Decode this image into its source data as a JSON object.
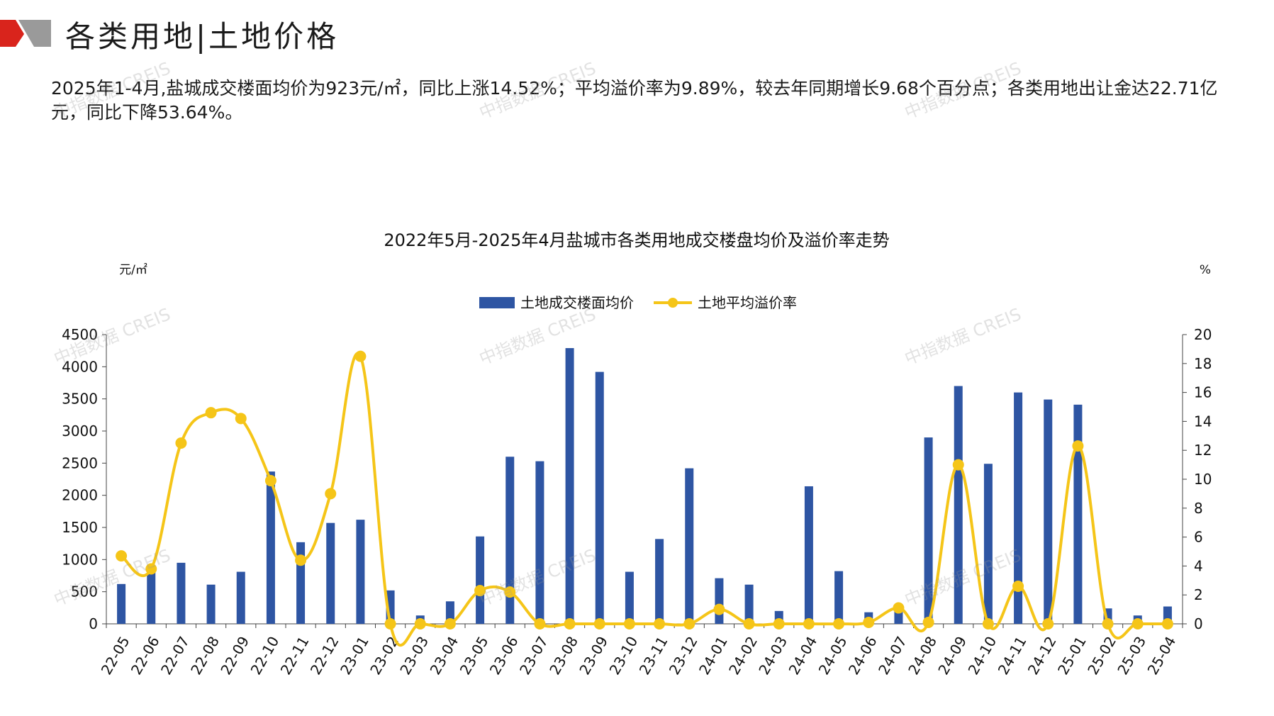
{
  "page": {
    "title": "各类用地|土地价格",
    "summary": "2025年1-4月,盐城成交楼面均价为923元/㎡，同比上涨14.52%；平均溢价率为9.89%，较去年同期增长9.68个百分点；各类用地出让金达22.71亿元，同比下降53.64%。",
    "watermark": "中指数据 CREIS"
  },
  "colors": {
    "bar": "#2E55A3",
    "line": "#F5C518",
    "logo_red": "#D9241C",
    "logo_gray": "#9A9A9A"
  },
  "chart_data": {
    "type": "bar",
    "title": "2022年5月-2025年4月盐城市各类用地成交楼盘均价及溢价率走势",
    "left_unit": "元/㎡",
    "right_unit": "%",
    "legend_position": "top-center",
    "categories": [
      "22-05",
      "22-06",
      "22-07",
      "22-08",
      "22-09",
      "22-10",
      "22-11",
      "22-12",
      "23-01",
      "23-02",
      "23-03",
      "23-04",
      "23-05",
      "23-06",
      "23-07",
      "23-08",
      "23-09",
      "23-10",
      "23-11",
      "23-12",
      "24-01",
      "24-02",
      "24-03",
      "24-04",
      "24-05",
      "24-06",
      "24-07",
      "24-08",
      "24-09",
      "24-10",
      "24-11",
      "24-12",
      "25-01",
      "25-02",
      "25-03",
      "25-04"
    ],
    "left_axis": {
      "min": 0,
      "max": 4500,
      "ticks": [
        0,
        500,
        1000,
        1500,
        2000,
        2500,
        3000,
        3500,
        4000,
        4500
      ]
    },
    "right_axis": {
      "min": 0,
      "max": 20,
      "ticks": [
        0,
        2,
        4,
        6,
        8,
        10,
        12,
        14,
        16,
        18,
        20
      ]
    },
    "series": [
      {
        "name": "土地成交楼面均价",
        "type": "bar",
        "axis": "left",
        "values": [
          620,
          900,
          950,
          610,
          810,
          2370,
          1270,
          1570,
          1620,
          520,
          130,
          350,
          1360,
          2600,
          2530,
          4290,
          3920,
          810,
          1320,
          2420,
          710,
          610,
          200,
          2140,
          820,
          180,
          260,
          2900,
          3700,
          2490,
          3600,
          3490,
          3410,
          240,
          130,
          270
        ]
      },
      {
        "name": "土地平均溢价率",
        "type": "line",
        "axis": "right",
        "values": [
          4.7,
          3.8,
          12.5,
          14.6,
          14.2,
          9.9,
          4.4,
          9.0,
          18.5,
          0,
          0,
          0,
          2.3,
          2.2,
          0,
          0,
          0,
          0,
          0,
          0,
          1.0,
          0,
          0,
          0,
          0,
          0.1,
          1.1,
          0.1,
          11.0,
          0,
          2.6,
          0,
          12.3,
          0,
          0,
          0
        ]
      }
    ]
  }
}
